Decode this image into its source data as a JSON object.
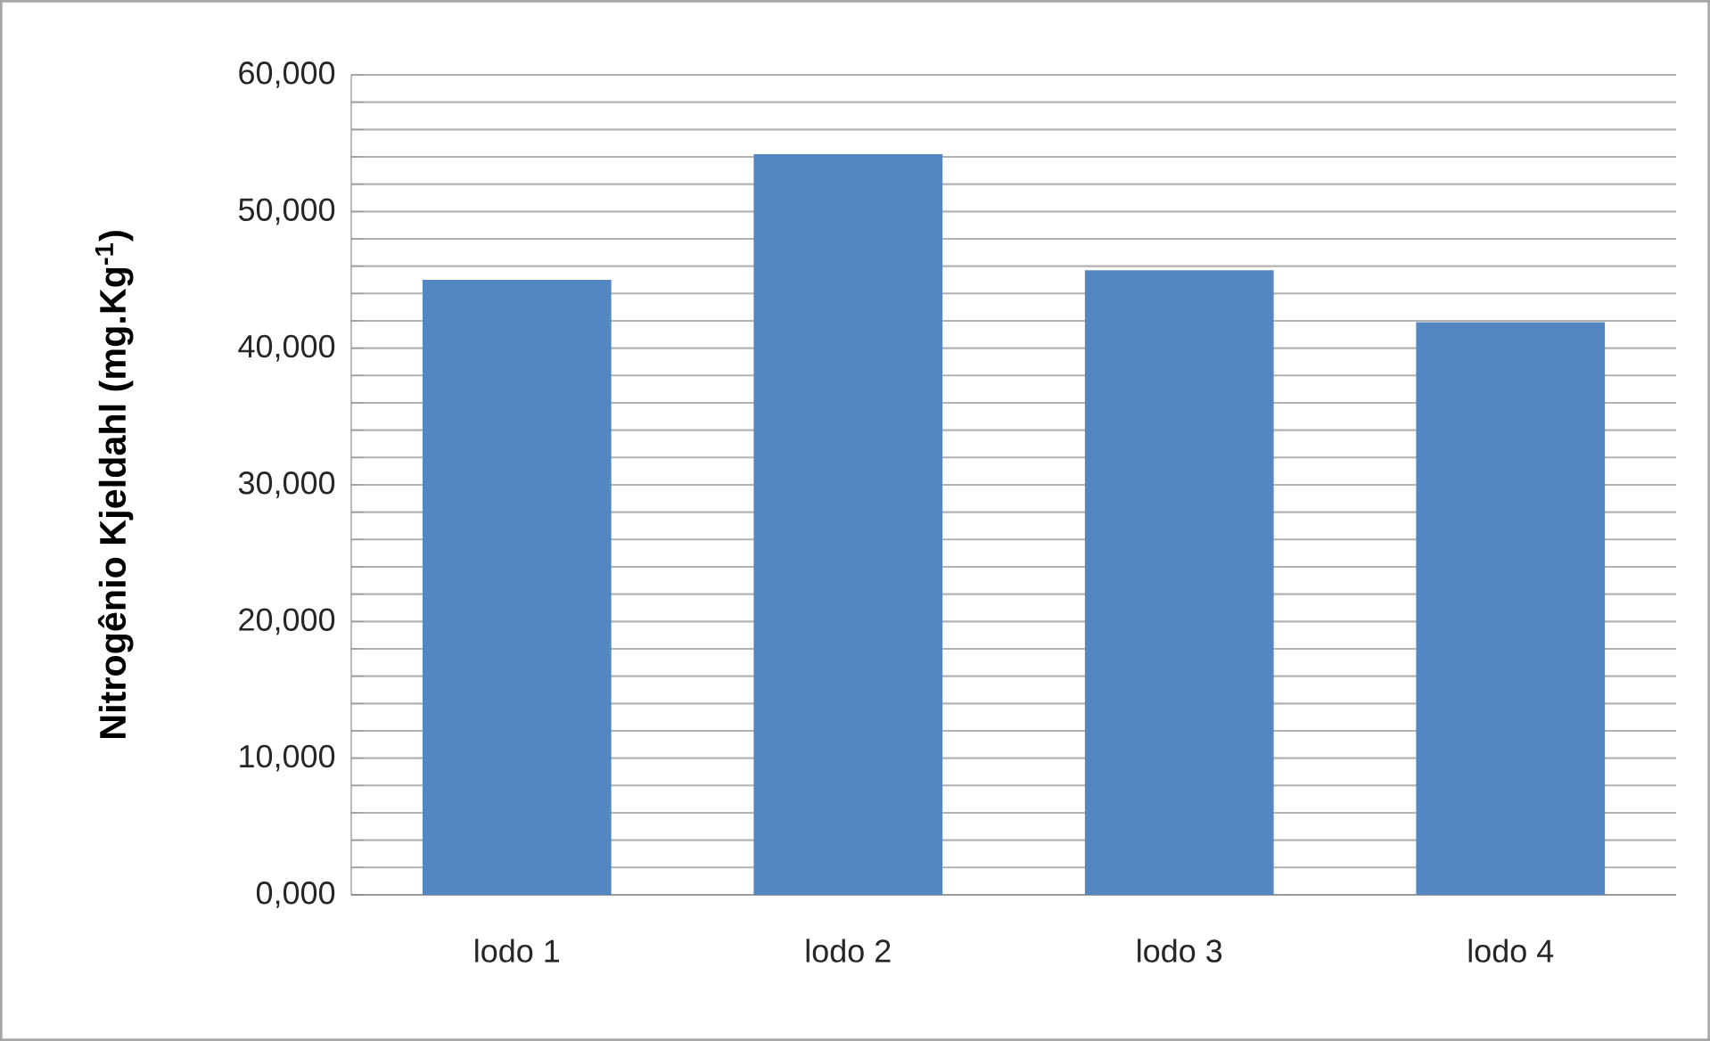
{
  "chart_data": {
    "type": "bar",
    "ylabel": "Nitrogênio Kjeldahl (mg.Kg$^{-1}$)",
    "categories": [
      "lodo 1",
      "lodo 2",
      "lodo 3",
      "lodo 4"
    ],
    "values": [
      45000,
      54200,
      45700,
      41900
    ],
    "color": "#5487c1",
    "ylim": [
      0,
      60000
    ],
    "yticks": [
      {
        "value": 0,
        "label": "0,000"
      },
      {
        "value": 2000,
        "label": null
      },
      {
        "value": 4000,
        "label": null
      },
      {
        "value": 6000,
        "label": null
      },
      {
        "value": 8000,
        "label": null
      },
      {
        "value": 10000,
        "label": "10,000"
      },
      {
        "value": 12000,
        "label": null
      },
      {
        "value": 14000,
        "label": null
      },
      {
        "value": 16000,
        "label": null
      },
      {
        "value": 18000,
        "label": null
      },
      {
        "value": 20000,
        "label": "20,000"
      },
      {
        "value": 22000,
        "label": null
      },
      {
        "value": 24000,
        "label": null
      },
      {
        "value": 26000,
        "label": null
      },
      {
        "value": 28000,
        "label": null
      },
      {
        "value": 30000,
        "label": "30,000"
      },
      {
        "value": 32000,
        "label": null
      },
      {
        "value": 34000,
        "label": null
      },
      {
        "value": 36000,
        "label": null
      },
      {
        "value": 38000,
        "label": null
      },
      {
        "value": 40000,
        "label": "40,000"
      },
      {
        "value": 42000,
        "label": null
      },
      {
        "value": 44000,
        "label": null
      },
      {
        "value": 46000,
        "label": null
      },
      {
        "value": 48000,
        "label": null
      },
      {
        "value": 50000,
        "label": "50,000"
      },
      {
        "value": 52000,
        "label": null
      },
      {
        "value": 54000,
        "label": null
      },
      {
        "value": 56000,
        "label": null
      },
      {
        "value": 58000,
        "label": null
      },
      {
        "value": 60000,
        "label": "60,000"
      }
    ],
    "grid": "y"
  }
}
